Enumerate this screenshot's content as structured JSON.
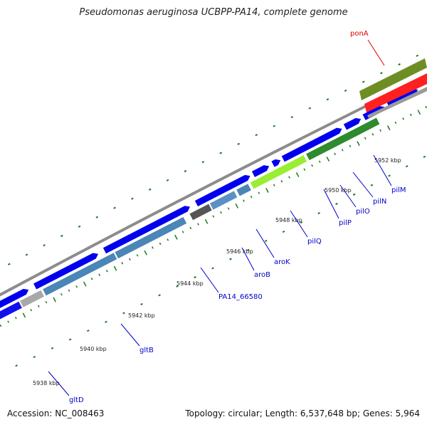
{
  "title": "Pseudomonas aeruginosa UCBPP-PA14, complete genome",
  "footer": {
    "accession": "Accession: NC_008463",
    "summary": "Topology: circular; Length: 6,537,648 bp; Genes: 5,964"
  },
  "colors": {
    "forward_gene": "#0000ee",
    "backbone": "#8c8c8c",
    "ticks": "#1a7a1a",
    "label_line": "#0000cc",
    "highlight_line": "#dd0000"
  },
  "scale_labels": [
    {
      "text": "5938 kbp"
    },
    {
      "text": "5940 kbp"
    },
    {
      "text": "5942 kbp"
    },
    {
      "text": "5944 kbp"
    },
    {
      "text": "5946 kbp"
    },
    {
      "text": "5948 kbp"
    },
    {
      "text": "5950 kbp"
    },
    {
      "text": "5952 kbp"
    }
  ],
  "gene_labels": [
    {
      "text": "gltD"
    },
    {
      "text": "gltB"
    },
    {
      "text": "PA14_66580"
    },
    {
      "text": "aroB"
    },
    {
      "text": "aroK"
    },
    {
      "text": "pilQ"
    },
    {
      "text": "pilP"
    },
    {
      "text": "pilO"
    },
    {
      "text": "pilN"
    },
    {
      "text": "pilM"
    },
    {
      "text": "ponA"
    }
  ]
}
